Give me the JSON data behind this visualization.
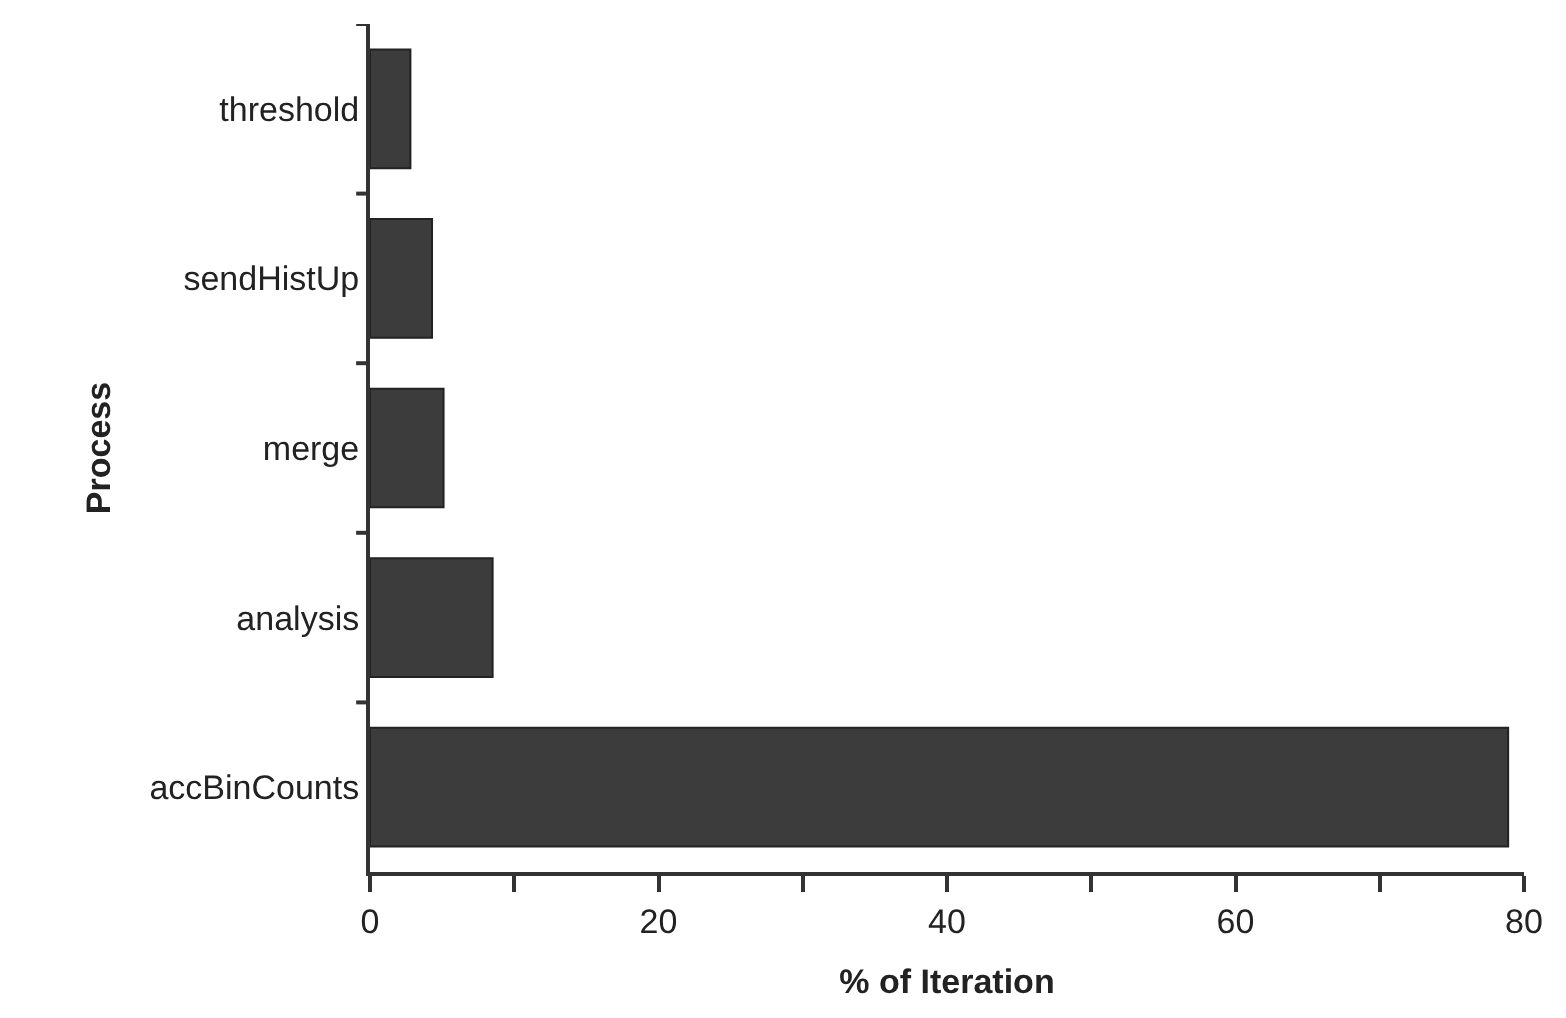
{
  "chart_data": {
    "type": "bar",
    "orientation": "horizontal",
    "categories": [
      "threshold",
      "sendHistUp",
      "merge",
      "analysis",
      "accBinCounts"
    ],
    "values": [
      2.8,
      4.3,
      5.1,
      8.5,
      78.9
    ],
    "color": "#3c3c3c",
    "xlim": [
      0,
      80
    ],
    "xticks": [
      0,
      {
        "value": 10,
        "label": null
      },
      20,
      {
        "value": 30,
        "label": null
      },
      40,
      {
        "value": 50,
        "label": null
      },
      60,
      {
        "value": 70,
        "label": null
      },
      80
    ],
    "xlabel": "% of Iteration",
    "ylabel": "Process"
  }
}
